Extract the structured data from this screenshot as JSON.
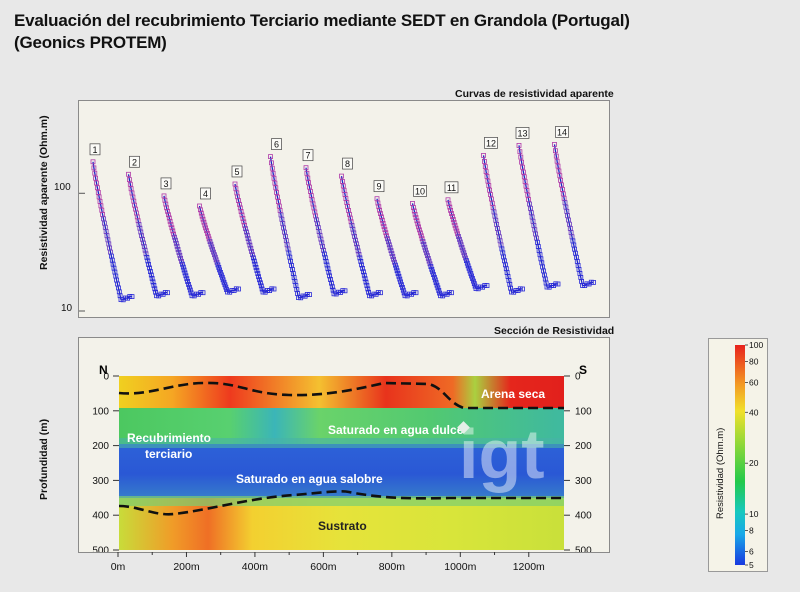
{
  "title_line1": "Evaluación del recubrimiento Terciario mediante SEDT en Grandola (Portugal)",
  "title_line2": "(Geonics PROTEM)",
  "curves_panel": {
    "label": "Curvas de resistividad aparente",
    "y_axis_label": "Resistividad aparente (Ohm.m)",
    "y_ticks": [
      "100",
      "10"
    ],
    "curve_ids": [
      "1",
      "2",
      "3",
      "4",
      "5",
      "6",
      "7",
      "8",
      "9",
      "10",
      "11",
      "12",
      "13",
      "14"
    ],
    "curve_start_values": [
      185,
      145,
      95,
      78,
      120,
      205,
      165,
      140,
      90,
      82,
      88,
      210,
      255,
      260
    ],
    "curve_min_values": [
      12.5,
      13.5,
      13.5,
      14.5,
      14.5,
      13,
      14,
      13.5,
      13.5,
      13.5,
      15.5,
      14.5,
      16,
      16.5
    ],
    "y_range_log": [
      10,
      500
    ]
  },
  "section_panel": {
    "label": "Sección de Resistividad",
    "y_axis_label": "Profundidad (m)",
    "depth_ticks": [
      "0",
      "100",
      "200",
      "300",
      "400",
      "500"
    ],
    "distance_ticks": [
      "0m",
      "200m",
      "400m",
      "600m",
      "800m",
      "1000m",
      "1200m"
    ],
    "north_label": "N",
    "south_label": "S",
    "layer_labels": {
      "arena": "Arena seca",
      "dulce": "Saturado en agua dulce",
      "recubrimiento_1": "Recubrimiento",
      "recubrimiento_2": "terciario",
      "salobre": "Saturado en agua salobre",
      "sustrato": "Sustrato"
    },
    "watermark": "igt"
  },
  "legend": {
    "title": "Resistividad (Ohm.m)",
    "ticks": [
      "100",
      "80",
      "60",
      "40",
      "20",
      "10",
      "8",
      "6",
      "5"
    ],
    "colors": {
      "high": "#e8231c",
      "mid": "#38c93c",
      "low": "#1838e0"
    }
  }
}
